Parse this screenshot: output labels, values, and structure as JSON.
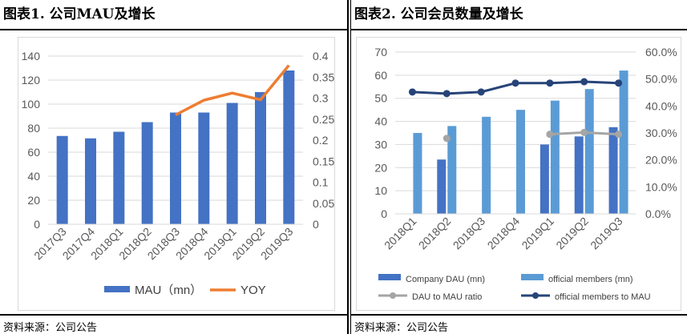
{
  "left": {
    "title": "图表1.  公司MAU及增长",
    "source": "资料来源：公司公告",
    "chart_data": {
      "type": "bar",
      "categories": [
        "2017Q3",
        "2017Q4",
        "2018Q1",
        "2018Q2",
        "2018Q3",
        "2018Q4",
        "2019Q1",
        "2019Q2",
        "2019Q3"
      ],
      "series": [
        {
          "name": "MAU（mn）",
          "type": "bar",
          "axis": "left",
          "color": "#4472C4",
          "values": [
            73.5,
            71.5,
            77,
            85,
            93,
            93,
            101,
            110,
            128
          ]
        },
        {
          "name": "YOY",
          "type": "line",
          "axis": "right",
          "color": "#ED7D31",
          "values": [
            null,
            null,
            null,
            null,
            0.26,
            0.295,
            0.312,
            0.296,
            0.378
          ]
        }
      ],
      "ylim_left": [
        0,
        140
      ],
      "yticks_left": [
        0,
        20,
        40,
        60,
        80,
        100,
        120,
        140
      ],
      "ylim_right": [
        0,
        0.4
      ],
      "yticks_right": [
        "0",
        "0.05",
        "0.1",
        "0.15",
        "0.2",
        "0.25",
        "0.3",
        "0.35",
        "0.4"
      ],
      "grid": true,
      "legend_position": "bottom"
    }
  },
  "right": {
    "title": "图表2.  公司会员数量及增长",
    "source": "资料来源：公司公告",
    "chart_data": {
      "type": "bar",
      "categories": [
        "2018Q1",
        "2018Q2",
        "2018Q3",
        "2018Q4",
        "2019Q1",
        "2019Q2",
        "2019Q3"
      ],
      "series": [
        {
          "name": "Company DAU (mn)",
          "type": "bar",
          "axis": "left",
          "color": "#4472C4",
          "values": [
            null,
            23.5,
            null,
            null,
            30,
            33.5,
            37.5
          ]
        },
        {
          "name": "official members (mn)",
          "type": "bar",
          "axis": "left",
          "color": "#5B9BD5",
          "values": [
            35,
            38,
            42,
            45,
            49,
            54,
            62
          ]
        },
        {
          "name": "DAU to MAU ratio",
          "type": "line",
          "axis": "right",
          "color": "#A5A5A5",
          "values": [
            null,
            0.28,
            null,
            null,
            0.295,
            0.302,
            0.295
          ]
        },
        {
          "name": "official members to MAU",
          "type": "line",
          "axis": "right",
          "color": "#264478",
          "values": [
            0.452,
            0.446,
            0.452,
            0.485,
            0.485,
            0.49,
            0.485
          ]
        }
      ],
      "ylim_left": [
        0,
        70
      ],
      "yticks_left": [
        0,
        10,
        20,
        30,
        40,
        50,
        60,
        70
      ],
      "ylim_right": [
        0,
        0.6
      ],
      "yticks_right": [
        "0.0%",
        "10.0%",
        "20.0%",
        "30.0%",
        "40.0%",
        "50.0%",
        "60.0%"
      ],
      "grid": true,
      "legend_position": "bottom"
    }
  }
}
